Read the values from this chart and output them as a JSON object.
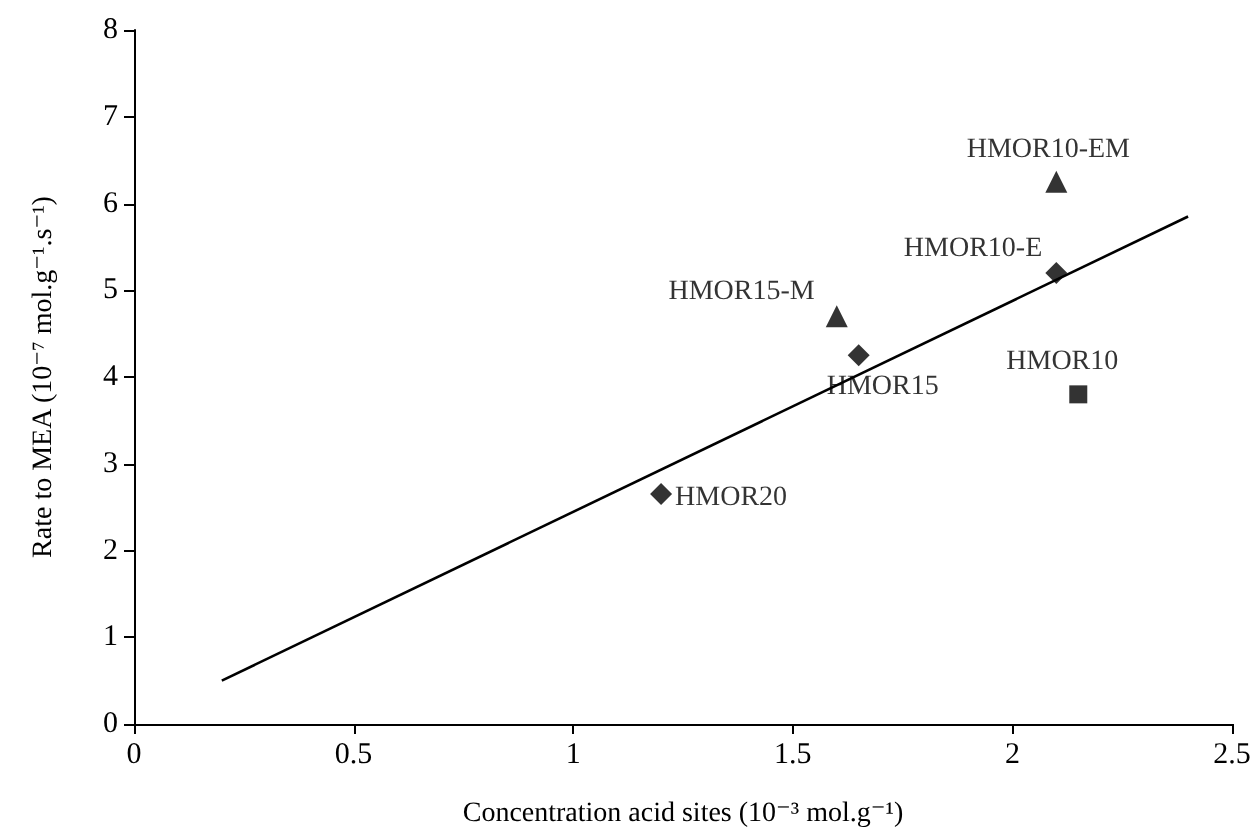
{
  "chart_data": {
    "type": "scatter",
    "xlabel": "Concentration acid sites (10⁻³ mol.g⁻¹)",
    "ylabel": "Rate to MEA (10⁻⁷ mol.g⁻¹.s⁻¹)",
    "xlim": [
      0,
      2.5
    ],
    "xticks": [
      0,
      0.5,
      1,
      1.5,
      2,
      2.5
    ],
    "ylim": [
      0,
      8
    ],
    "yticks": [
      0,
      1,
      2,
      3,
      4,
      5,
      6,
      7,
      8
    ],
    "grid": false,
    "series": [
      {
        "marker": "diamond",
        "color": "#000000",
        "x": [
          1.2,
          1.65,
          2.1
        ],
        "values": [
          2.65,
          4.25,
          5.2
        ]
      },
      {
        "marker": "triangle",
        "color": "#000000",
        "x": [
          1.6,
          2.1
        ],
        "values": [
          4.7,
          6.25
        ]
      },
      {
        "marker": "square",
        "color": "#000000",
        "x": [
          2.15
        ],
        "values": [
          3.8
        ]
      },
      {
        "type": "line",
        "marker": "none",
        "line_style": "solid",
        "color": "#000000",
        "x": [
          0.2,
          2.4
        ],
        "values": [
          0.5,
          5.85
        ]
      }
    ],
    "annotations": [
      {
        "text": "HMOR20",
        "x": 1.2,
        "y": 2.65
      },
      {
        "text": "HMOR15",
        "x": 1.65,
        "y": 4.25
      },
      {
        "text": "HMOR10-E",
        "x": 2.1,
        "y": 5.2
      },
      {
        "text": "HMOR15-M",
        "x": 1.6,
        "y": 4.7
      },
      {
        "text": "HMOR10-EM",
        "x": 2.1,
        "y": 6.25
      },
      {
        "text": "HMOR10",
        "x": 2.15,
        "y": 3.8
      }
    ]
  }
}
